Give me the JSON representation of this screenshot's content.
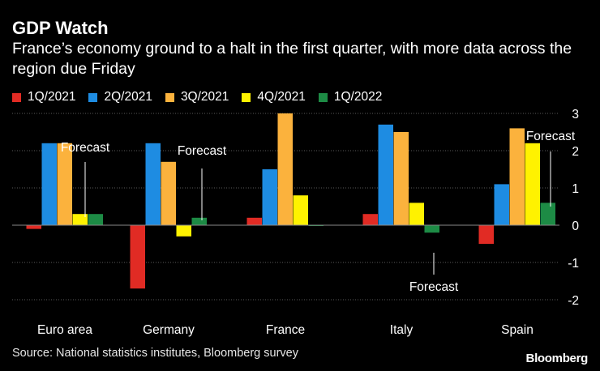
{
  "header": {
    "title": "GDP Watch",
    "subtitle": "France’s economy ground to a halt in the first quarter, with more data across the region due Friday"
  },
  "legend_items": [
    {
      "label": "1Q/2021",
      "color": "#e12b24"
    },
    {
      "label": "2Q/2021",
      "color": "#1e8ce2"
    },
    {
      "label": "3Q/2021",
      "color": "#fbb23d"
    },
    {
      "label": "4Q/2021",
      "color": "#fff200"
    },
    {
      "label": "1Q/2022",
      "color": "#1d8b45"
    }
  ],
  "chart_data": {
    "type": "bar",
    "categories": [
      "Euro area",
      "Germany",
      "France",
      "Italy",
      "Spain"
    ],
    "series": [
      {
        "name": "1Q/2021",
        "color": "#e12b24",
        "values": [
          -0.1,
          -1.7,
          0.2,
          0.3,
          -0.5
        ]
      },
      {
        "name": "2Q/2021",
        "color": "#1e8ce2",
        "values": [
          2.2,
          2.2,
          1.5,
          2.7,
          1.1
        ]
      },
      {
        "name": "3Q/2021",
        "color": "#fbb23d",
        "values": [
          2.2,
          1.7,
          3.0,
          2.5,
          2.6
        ]
      },
      {
        "name": "4Q/2021",
        "color": "#fff200",
        "values": [
          0.3,
          -0.3,
          0.8,
          0.6,
          2.2
        ]
      },
      {
        "name": "1Q/2022",
        "color": "#1d8b45",
        "values": [
          0.3,
          0.2,
          0.0,
          -0.2,
          0.6
        ]
      }
    ],
    "ylim": [
      -2,
      3
    ],
    "yticks": [
      3,
      2,
      1,
      0,
      -1,
      -2
    ],
    "ytick_labels": [
      "3",
      "2",
      "1",
      "0",
      "-1",
      "-2"
    ],
    "grid": true,
    "annotations": [
      {
        "text": "Forecast",
        "category": "Euro area"
      },
      {
        "text": "Forecast",
        "category": "Germany"
      },
      {
        "text": "Forecast",
        "category": "Italy"
      },
      {
        "text": "Forecast",
        "category": "Spain"
      }
    ]
  },
  "footer": {
    "source": "Source: National statistics institutes, Bloomberg survey",
    "brand": "Bloomberg"
  }
}
